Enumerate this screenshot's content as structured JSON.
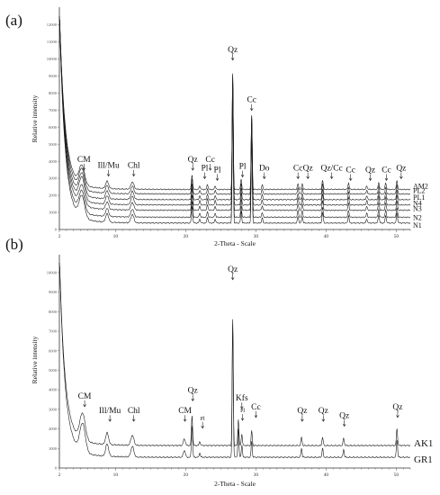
{
  "chart_data": [
    {
      "panel_label": "(a)",
      "type": "line",
      "xlabel": "2-Theta - Scale",
      "ylabel": "Relative intensity",
      "xlim": [
        2,
        52
      ],
      "ylim": [
        0,
        12500
      ],
      "x_ticks": [
        "2",
        "10",
        "20",
        "30",
        "40",
        "50"
      ],
      "y_ticks": [
        "0",
        "1000",
        "2000",
        "3000",
        "4000",
        "5000",
        "6000",
        "7000",
        "8000",
        "9000",
        "10000",
        "11000",
        "12000"
      ],
      "series": [
        {
          "name": "AM2",
          "baseline": 2350
        },
        {
          "name": "PL2",
          "baseline": 2080
        },
        {
          "name": "PL1",
          "baseline": 1750
        },
        {
          "name": "N4",
          "baseline": 1440
        },
        {
          "name": "N3",
          "baseline": 1130
        },
        {
          "name": "N2",
          "baseline": 720
        },
        {
          "name": "N1",
          "baseline": 380
        }
      ],
      "peaks": [
        {
          "x": 5.2,
          "height": 1300,
          "width": 0.55
        },
        {
          "x": 8.8,
          "height": 500,
          "width": 0.3
        },
        {
          "x": 12.4,
          "height": 500,
          "width": 0.3
        },
        {
          "x": 20.9,
          "height": 1000,
          "width": 0.12
        },
        {
          "x": 22.0,
          "height": 250,
          "width": 0.12
        },
        {
          "x": 23.1,
          "height": 350,
          "width": 0.12
        },
        {
          "x": 24.2,
          "height": 250,
          "width": 0.12
        },
        {
          "x": 26.7,
          "height": 7700,
          "width": 0.11
        },
        {
          "x": 27.9,
          "height": 700,
          "width": 0.11
        },
        {
          "x": 29.4,
          "height": 5100,
          "width": 0.11
        },
        {
          "x": 30.9,
          "height": 300,
          "width": 0.12
        },
        {
          "x": 36.0,
          "height": 400,
          "width": 0.12
        },
        {
          "x": 36.6,
          "height": 400,
          "width": 0.12
        },
        {
          "x": 39.5,
          "height": 650,
          "width": 0.12
        },
        {
          "x": 43.2,
          "height": 450,
          "width": 0.12
        },
        {
          "x": 45.8,
          "height": 250,
          "width": 0.12
        },
        {
          "x": 47.5,
          "height": 500,
          "width": 0.12
        },
        {
          "x": 48.5,
          "height": 450,
          "width": 0.12
        },
        {
          "x": 50.1,
          "height": 600,
          "width": 0.12
        }
      ],
      "annotations": [
        {
          "text": "CM",
          "x": 5.5,
          "y": 3950
        },
        {
          "text": "Ill/Mu",
          "x": 9.0,
          "y": 3600
        },
        {
          "text": "Chl",
          "x": 12.6,
          "y": 3600
        },
        {
          "text": "Qz",
          "x": 21.0,
          "y": 3950
        },
        {
          "text": "Cc",
          "x": 23.5,
          "y": 3950
        },
        {
          "text": "Pl",
          "x": 22.7,
          "y": 3450
        },
        {
          "text": "Pl",
          "x": 24.5,
          "y": 3350
        },
        {
          "text": "Qz",
          "x": 26.7,
          "y": 10400
        },
        {
          "text": "Cc",
          "x": 29.4,
          "y": 7450
        },
        {
          "text": "Pl",
          "x": 28.1,
          "y": 3550
        },
        {
          "text": "Do",
          "x": 31.2,
          "y": 3450
        },
        {
          "text": "Cc",
          "x": 36.0,
          "y": 3450
        },
        {
          "text": "Qz",
          "x": 37.4,
          "y": 3450
        },
        {
          "text": "Qz/Cc",
          "x": 40.8,
          "y": 3450
        },
        {
          "text": "Cc",
          "x": 43.5,
          "y": 3350
        },
        {
          "text": "Qz",
          "x": 46.3,
          "y": 3350
        },
        {
          "text": "Cc",
          "x": 48.6,
          "y": 3350
        },
        {
          "text": "Qz",
          "x": 50.7,
          "y": 3450
        }
      ]
    },
    {
      "panel_label": "(b)",
      "type": "line",
      "xlabel": "2-Theta - Scale",
      "ylabel": "Relative intensity",
      "xlim": [
        2,
        52
      ],
      "ylim": [
        0,
        10500
      ],
      "x_ticks": [
        "2",
        "10",
        "20",
        "30",
        "40",
        "50"
      ],
      "y_ticks": [
        "0",
        "1000",
        "2000",
        "3000",
        "4000",
        "5000",
        "6000",
        "7000",
        "8000",
        "9000",
        "10000"
      ],
      "series": [
        {
          "name": "AK1",
          "baseline": 1150
        },
        {
          "name": "GR1",
          "baseline": 550
        }
      ],
      "peaks": [
        {
          "x": 5.3,
          "height": 1600,
          "width": 0.55
        },
        {
          "x": 8.8,
          "height": 700,
          "width": 0.3
        },
        {
          "x": 12.4,
          "height": 600,
          "width": 0.3
        },
        {
          "x": 19.8,
          "height": 400,
          "width": 0.2
        },
        {
          "x": 20.9,
          "height": 1800,
          "width": 0.12
        },
        {
          "x": 22.0,
          "height": 250,
          "width": 0.12
        },
        {
          "x": 26.7,
          "height": 7600,
          "width": 0.11
        },
        {
          "x": 27.5,
          "height": 1600,
          "width": 0.11
        },
        {
          "x": 28.0,
          "height": 700,
          "width": 0.11
        },
        {
          "x": 29.4,
          "height": 900,
          "width": 0.11
        },
        {
          "x": 36.5,
          "height": 500,
          "width": 0.12
        },
        {
          "x": 39.5,
          "height": 500,
          "width": 0.12
        },
        {
          "x": 42.5,
          "height": 450,
          "width": 0.12
        },
        {
          "x": 50.1,
          "height": 1000,
          "width": 0.12
        }
      ],
      "annotations": [
        {
          "text": "CM",
          "x": 5.6,
          "y": 3550
        },
        {
          "text": "Ill/Mu",
          "x": 9.2,
          "y": 2800
        },
        {
          "text": "Chl",
          "x": 12.6,
          "y": 2800
        },
        {
          "text": "CM",
          "x": 19.9,
          "y": 2800
        },
        {
          "text": "Qz",
          "x": 21.0,
          "y": 3850
        },
        {
          "text": "Pl",
          "x": 22.4,
          "y": 2450
        },
        {
          "text": "Qz",
          "x": 26.7,
          "y": 10050
        },
        {
          "text": "Kfs",
          "x": 28.0,
          "y": 3450
        },
        {
          "text": "Pl",
          "x": 28.1,
          "y": 2850
        },
        {
          "text": "Cc",
          "x": 30.0,
          "y": 3000
        },
        {
          "text": "Qz",
          "x": 36.6,
          "y": 2800
        },
        {
          "text": "Qz",
          "x": 39.6,
          "y": 2800
        },
        {
          "text": "Qz",
          "x": 42.6,
          "y": 2550
        },
        {
          "text": "Qz",
          "x": 50.2,
          "y": 3000
        }
      ]
    }
  ]
}
